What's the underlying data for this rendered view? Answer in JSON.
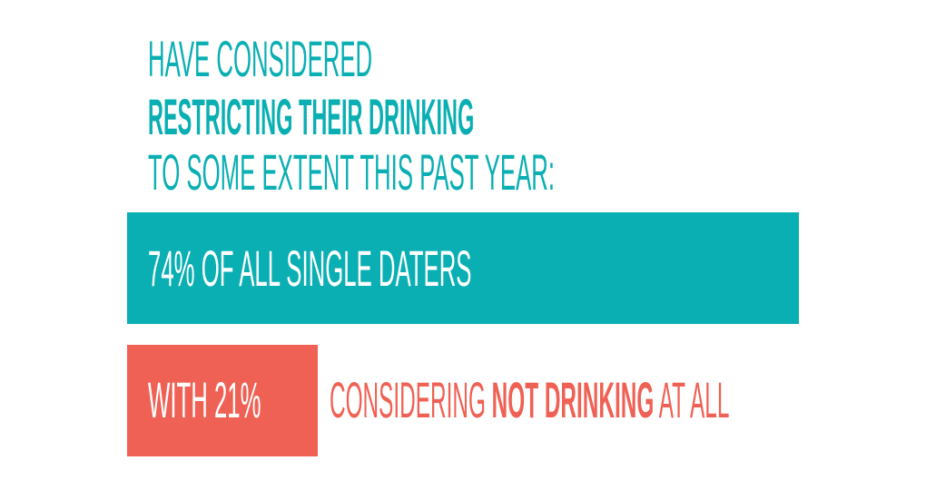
{
  "heading": {
    "line1": "Have considered",
    "line2": "Restricting their drinking",
    "line3": "to some extent this past year:"
  },
  "stat_bar": {
    "label": "74% of all single daters",
    "value_percent": 74
  },
  "sub_stat": {
    "box_label": "With 21%",
    "text_pre": "considering ",
    "text_bold": "not drinking",
    "text_post": " at all",
    "value_percent": 21
  },
  "colors": {
    "teal": "#0aafb3",
    "coral": "#ef6154"
  }
}
